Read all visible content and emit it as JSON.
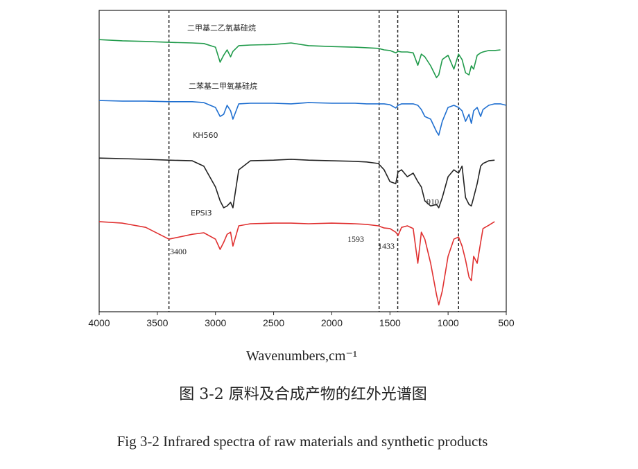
{
  "chart_data": {
    "type": "line",
    "xlabel": "Wavenumbers,cm⁻¹",
    "captions": [
      "图 3-2 原料及合成产物的红外光谱图",
      "Fig 3-2 Infrared spectra of raw materials and synthetic products"
    ],
    "xlim": [
      4000,
      500
    ],
    "xticks": [
      4000,
      3500,
      3000,
      2500,
      2000,
      1500,
      1000,
      500
    ],
    "ylim": [
      0,
      100
    ],
    "x": [
      4000,
      3800,
      3600,
      3400,
      3200,
      3100,
      3000,
      2960,
      2930,
      2900,
      2870,
      2850,
      2800,
      2700,
      2500,
      2350,
      2200,
      2000,
      1800,
      1700,
      1600,
      1550,
      1500,
      1450,
      1430,
      1400,
      1350,
      1300,
      1260,
      1230,
      1200,
      1150,
      1100,
      1080,
      1050,
      1000,
      950,
      910,
      880,
      850,
      820,
      800,
      780,
      750,
      720,
      700,
      650,
      600,
      550,
      500
    ],
    "series": [
      {
        "name": "二甲基二乙氧基硅烷",
        "color": "#1f9a4a",
        "values": [
          90.3,
          89.9,
          89.7,
          89.4,
          89.2,
          89.0,
          87.8,
          82.8,
          85.1,
          86.9,
          84.6,
          86.4,
          88.3,
          88.5,
          88.7,
          89.2,
          88.3,
          88.0,
          87.8,
          87.6,
          87.4,
          86.9,
          86.7,
          85.9,
          86.4,
          86.2,
          86.2,
          85.9,
          81.8,
          85.5,
          84.6,
          81.6,
          77.7,
          78.6,
          83.7,
          85.1,
          80.5,
          85.5,
          83.7,
          79.3,
          78.6,
          81.6,
          80.5,
          85.1,
          85.9,
          86.2,
          86.7,
          86.7,
          86.9,
          null
        ]
      },
      {
        "name": "二苯基二甲氧基硅烷",
        "color": "#1f6fd0",
        "values": [
          70.1,
          69.9,
          69.9,
          69.7,
          69.7,
          69.4,
          67.8,
          64.8,
          65.5,
          68.5,
          66.7,
          63.9,
          69.0,
          69.2,
          69.2,
          69.0,
          69.4,
          69.2,
          69.2,
          69.0,
          69.0,
          69.0,
          68.7,
          67.6,
          68.5,
          69.0,
          69.0,
          69.0,
          68.5,
          67.1,
          64.8,
          63.9,
          59.8,
          58.6,
          63.2,
          67.8,
          68.5,
          67.8,
          66.7,
          63.2,
          65.5,
          62.5,
          66.7,
          67.8,
          64.8,
          67.1,
          68.5,
          69.0,
          69.0,
          68.5
        ]
      },
      {
        "name": "KH560",
        "color": "#222222",
        "values": [
          51.0,
          50.8,
          50.6,
          50.3,
          50.1,
          48.3,
          41.4,
          36.8,
          34.5,
          35.1,
          36.3,
          34.5,
          47.1,
          50.1,
          50.3,
          50.6,
          50.3,
          50.1,
          49.9,
          49.7,
          49.2,
          47.1,
          43.2,
          42.5,
          46.4,
          47.1,
          44.8,
          46.0,
          43.2,
          41.4,
          36.8,
          35.1,
          35.6,
          34.5,
          37.9,
          44.8,
          47.1,
          46.0,
          48.3,
          37.9,
          35.6,
          35.1,
          37.9,
          42.5,
          48.3,
          49.2,
          50.1,
          50.3,
          null,
          null
        ]
      },
      {
        "name": "EPSi3",
        "color": "#e03030",
        "values": [
          29.9,
          29.4,
          28.0,
          24.1,
          25.7,
          26.2,
          24.1,
          20.7,
          23.0,
          25.7,
          26.4,
          21.8,
          28.5,
          29.2,
          29.4,
          29.4,
          29.2,
          29.4,
          29.2,
          29.0,
          28.5,
          27.8,
          27.6,
          26.4,
          25.3,
          28.0,
          28.5,
          27.6,
          16.1,
          26.4,
          24.1,
          16.1,
          5.7,
          2.3,
          6.9,
          18.4,
          24.1,
          24.8,
          21.8,
          17.2,
          11.5,
          10.3,
          18.4,
          16.1,
          23.0,
          27.6,
          28.7,
          29.9,
          null,
          null
        ]
      }
    ],
    "annotations": [
      {
        "text": "3400",
        "x": 3400
      },
      {
        "text": "1593",
        "x": 1593
      },
      {
        "text": "1433",
        "x": 1433
      },
      {
        "text": "910",
        "x": 910
      }
    ]
  }
}
